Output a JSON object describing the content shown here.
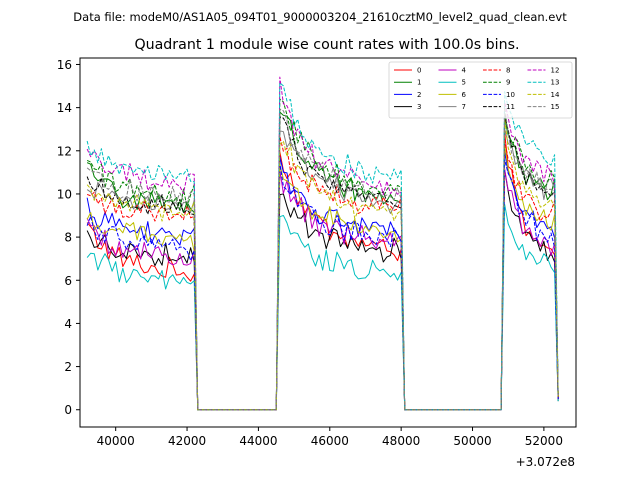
{
  "suptitle": "Data file: modeM0/AS1A05_094T01_9000003204_21610cztM0_level2_quad_clean.evt",
  "chart_data": {
    "type": "line",
    "title": "Quadrant 1 module wise count rates with 100.0s bins.",
    "xlabel": "",
    "ylabel": "",
    "x_offset_label": "+3.072e8",
    "xlim": [
      39000,
      52900
    ],
    "ylim": [
      -0.8,
      16.3
    ],
    "x_ticks": [
      40000,
      42000,
      44000,
      46000,
      48000,
      50000,
      52000
    ],
    "x_tick_labels": [
      "40000",
      "42000",
      "44000",
      "46000",
      "48000",
      "50000",
      "52000"
    ],
    "y_ticks": [
      0,
      2,
      4,
      6,
      8,
      10,
      12,
      14,
      16
    ],
    "y_tick_labels": [
      "0",
      "2",
      "4",
      "6",
      "8",
      "10",
      "12",
      "14",
      "16"
    ],
    "grid": false,
    "legend_position": "top-right",
    "segments": [
      {
        "x_start": 39200,
        "x_end": 42200
      },
      {
        "x_start": 44600,
        "x_end": 48000
      },
      {
        "x_start": 50900,
        "x_end": 52400
      }
    ],
    "gap_value": 0,
    "series": [
      {
        "name": "0",
        "color": "#ff0000",
        "dash": "solid",
        "seg_levels": [
          [
            8.6,
            6.3
          ],
          [
            12.0,
            7.3
          ],
          [
            13.0,
            7.0
          ]
        ],
        "end_value": 0.5
      },
      {
        "name": "1",
        "color": "#008000",
        "dash": "solid",
        "seg_levels": [
          [
            11.2,
            9.4
          ],
          [
            14.2,
            9.7
          ],
          [
            14.0,
            10.0
          ]
        ],
        "end_value": 0.6
      },
      {
        "name": "2",
        "color": "#0000ff",
        "dash": "solid",
        "seg_levels": [
          [
            9.4,
            8.0
          ],
          [
            11.6,
            8.2
          ],
          [
            12.4,
            8.0
          ]
        ],
        "end_value": 0.5
      },
      {
        "name": "3",
        "color": "#000000",
        "dash": "solid",
        "seg_levels": [
          [
            8.1,
            7.1
          ],
          [
            10.2,
            7.3
          ],
          [
            11.5,
            7.2
          ]
        ],
        "end_value": 0.4
      },
      {
        "name": "4",
        "color": "#bf00bf",
        "dash": "solid",
        "seg_levels": [
          [
            8.5,
            7.0
          ],
          [
            10.8,
            7.7
          ],
          [
            11.5,
            7.5
          ]
        ],
        "end_value": 0.5
      },
      {
        "name": "5",
        "color": "#00bfbf",
        "dash": "solid",
        "seg_levels": [
          [
            7.4,
            5.8
          ],
          [
            9.0,
            6.3
          ],
          [
            9.8,
            6.5
          ]
        ],
        "end_value": 0.4
      },
      {
        "name": "6",
        "color": "#bfbf00",
        "dash": "solid",
        "seg_levels": [
          [
            9.0,
            7.8
          ],
          [
            11.3,
            8.1
          ],
          [
            12.5,
            8.6
          ]
        ],
        "end_value": 0.6
      },
      {
        "name": "7",
        "color": "#808080",
        "dash": "solid",
        "seg_levels": [
          [
            10.6,
            9.5
          ],
          [
            13.2,
            9.6
          ],
          [
            13.6,
            10.1
          ]
        ],
        "end_value": 0.6
      },
      {
        "name": "8",
        "color": "#ff0000",
        "dash": "dashed",
        "seg_levels": [
          [
            10.2,
            9.0
          ],
          [
            12.4,
            9.3
          ],
          [
            13.0,
            9.0
          ]
        ],
        "end_value": 0.5
      },
      {
        "name": "9",
        "color": "#008000",
        "dash": "dashed",
        "seg_levels": [
          [
            11.6,
            9.8
          ],
          [
            14.5,
            10.0
          ],
          [
            14.2,
            10.4
          ]
        ],
        "end_value": 0.7
      },
      {
        "name": "10",
        "color": "#0000ff",
        "dash": "dashed",
        "seg_levels": [
          [
            8.8,
            7.4
          ],
          [
            11.0,
            7.8
          ],
          [
            12.0,
            7.9
          ]
        ],
        "end_value": 0.5
      },
      {
        "name": "11",
        "color": "#000000",
        "dash": "dashed",
        "seg_levels": [
          [
            10.9,
            9.3
          ],
          [
            13.5,
            9.6
          ],
          [
            14.0,
            10.0
          ]
        ],
        "end_value": 0.6
      },
      {
        "name": "12",
        "color": "#bf00bf",
        "dash": "dashed",
        "seg_levels": [
          [
            12.0,
            10.5
          ],
          [
            14.8,
            10.2
          ],
          [
            14.6,
            10.6
          ]
        ],
        "end_value": 0.7
      },
      {
        "name": "13",
        "color": "#00bfbf",
        "dash": "dashed",
        "seg_levels": [
          [
            12.2,
            10.8
          ],
          [
            15.3,
            10.6
          ],
          [
            15.0,
            11.4
          ]
        ],
        "end_value": 0.8
      },
      {
        "name": "14",
        "color": "#bfbf00",
        "dash": "dashed",
        "seg_levels": [
          [
            10.4,
            9.2
          ],
          [
            12.8,
            9.0
          ],
          [
            13.2,
            9.3
          ]
        ],
        "end_value": 0.6
      },
      {
        "name": "15",
        "color": "#808080",
        "dash": "dashed",
        "seg_levels": [
          [
            11.0,
            9.8
          ],
          [
            13.9,
            9.8
          ],
          [
            13.8,
            10.2
          ]
        ],
        "end_value": 0.7
      }
    ]
  }
}
